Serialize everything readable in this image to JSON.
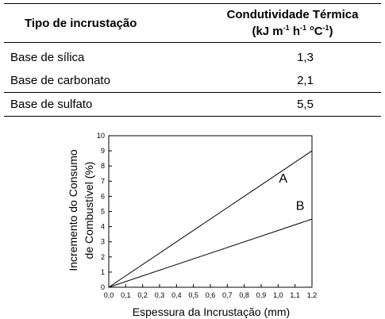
{
  "table": {
    "headers": {
      "type": "Tipo de incrustação",
      "conductivity_line1": "Condutividade Térmica",
      "unit_open": "(kJ m",
      "unit_exp1": "-1",
      "unit_h": " h",
      "unit_exp2": "-1",
      "unit_degree": " ",
      "unit_o": "o",
      "unit_c": "C",
      "unit_exp3": "-1",
      "unit_close": ")"
    },
    "rows": [
      {
        "type": "Base de sílica",
        "value": "1,3"
      },
      {
        "type": "Base de carbonato",
        "value": "2,1"
      },
      {
        "type": "Base de sulfato",
        "value": "5,5"
      }
    ]
  },
  "chart_data": {
    "type": "line",
    "title": "",
    "xlabel": "Espessura da Incrustação (mm)",
    "ylabel_line1": "Incremento do Consumo",
    "ylabel_line2": "de Combustível (%)",
    "xlim": [
      0,
      1.2
    ],
    "ylim": [
      0,
      10
    ],
    "grid": false,
    "x_ticks": [
      "0,0",
      "0,1",
      "0,2",
      "0,3",
      "0,4",
      "0,5",
      "0,6",
      "0,7",
      "0,8",
      "0,9",
      "1,0",
      "1,1",
      "1,2"
    ],
    "y_ticks": [
      "0",
      "1",
      "2",
      "3",
      "4",
      "5",
      "6",
      "7",
      "8",
      "9",
      "10"
    ],
    "series": [
      {
        "name": "A",
        "x": [
          0,
          1.2
        ],
        "y": [
          0,
          9.0
        ]
      },
      {
        "name": "B",
        "x": [
          0,
          1.2
        ],
        "y": [
          0,
          4.5
        ]
      }
    ],
    "series_label_positions": [
      {
        "name": "A",
        "x": 1.03,
        "y": 6.9
      },
      {
        "name": "B",
        "x": 1.13,
        "y": 5.1
      }
    ],
    "line_color": "#000000"
  }
}
